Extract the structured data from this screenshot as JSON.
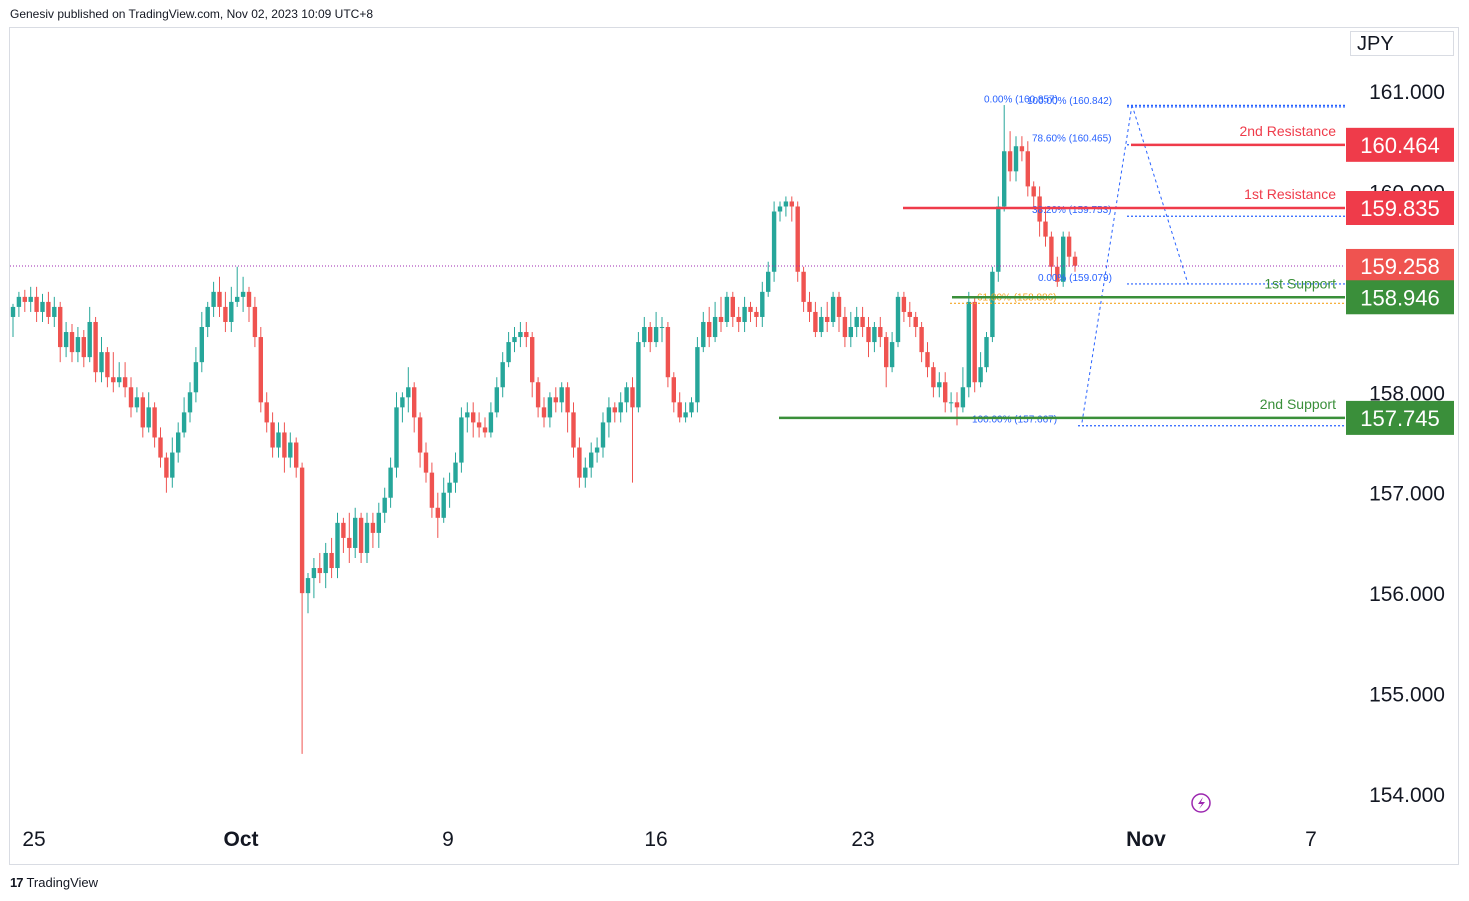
{
  "header": {
    "text": "Genesiv published on TradingView.com, Nov 02, 2023 10:09 UTC+8"
  },
  "currency": "JPY",
  "footer": {
    "logo_icon": "tradingview-logo-icon",
    "brand": "TradingView"
  },
  "colors": {
    "bull": "#26a69a",
    "bear": "#ef5350",
    "resistance": "#ef3b4a",
    "support": "#3a8f3a",
    "fib": "#2962ff",
    "fib_golden": "#f5a623",
    "text": "#131722"
  },
  "chart_data": {
    "type": "candlestick",
    "ylim": [
      153.7,
      161.5
    ],
    "y_ticks": [
      "161.000",
      "160.000",
      "158.000",
      "157.000",
      "156.000",
      "155.000",
      "154.000"
    ],
    "x_ticks": [
      "25",
      "Oct",
      "9",
      "16",
      "23",
      "Nov",
      "7"
    ],
    "current_price": "159.258",
    "levels": [
      {
        "name": "2nd Resistance",
        "value": 160.464,
        "label": "160.464",
        "kind": "resistance"
      },
      {
        "name": "1st Resistance",
        "value": 159.835,
        "label": "159.835",
        "kind": "resistance"
      },
      {
        "name": "1st Support",
        "value": 158.946,
        "label": "158.946",
        "kind": "support"
      },
      {
        "name": "2nd Support",
        "value": 157.745,
        "label": "157.745",
        "kind": "support"
      }
    ],
    "fib_upper": [
      {
        "text": "0.00% (160.857)",
        "value": 160.857
      },
      {
        "text": "100.00% (160.842)",
        "value": 160.842
      },
      {
        "text": "78.60% (160.465)",
        "value": 160.465
      },
      {
        "text": "38.20% (159.753)",
        "value": 159.753
      },
      {
        "text": "61.80% (158.886)",
        "value": 158.886,
        "golden": true
      },
      {
        "text": "0.00% (159.079)",
        "value": 159.079
      }
    ],
    "fib_lower": [
      {
        "text": "100.00% (157.667)",
        "value": 157.667
      }
    ],
    "candles": [
      [
        158.75,
        158.85,
        158.55,
        158.88
      ],
      [
        158.85,
        158.95,
        158.75,
        159.0
      ],
      [
        158.95,
        158.9,
        158.8,
        159.02
      ],
      [
        158.9,
        158.95,
        158.8,
        159.05
      ],
      [
        158.95,
        158.8,
        158.7,
        159.05
      ],
      [
        158.8,
        158.9,
        158.7,
        158.98
      ],
      [
        158.9,
        158.75,
        158.68,
        159.0
      ],
      [
        158.75,
        158.85,
        158.65,
        158.95
      ],
      [
        158.85,
        158.45,
        158.3,
        158.9
      ],
      [
        158.45,
        158.6,
        158.35,
        158.7
      ],
      [
        158.6,
        158.4,
        158.3,
        158.68
      ],
      [
        158.4,
        158.55,
        158.3,
        158.65
      ],
      [
        158.55,
        158.35,
        158.25,
        158.62
      ],
      [
        158.35,
        158.7,
        158.3,
        158.85
      ],
      [
        158.7,
        158.2,
        158.1,
        158.75
      ],
      [
        158.2,
        158.4,
        158.1,
        158.55
      ],
      [
        158.4,
        158.15,
        158.05,
        158.45
      ],
      [
        158.15,
        158.1,
        158.0,
        158.4
      ],
      [
        158.1,
        158.15,
        158.05,
        158.3
      ],
      [
        158.15,
        158.05,
        157.95,
        158.3
      ],
      [
        158.05,
        157.85,
        157.75,
        158.15
      ],
      [
        157.85,
        157.95,
        157.8,
        158.05
      ],
      [
        157.95,
        157.65,
        157.55,
        158.0
      ],
      [
        157.65,
        157.85,
        157.6,
        158.0
      ],
      [
        157.85,
        157.55,
        157.45,
        157.9
      ],
      [
        157.55,
        157.35,
        157.25,
        157.65
      ],
      [
        157.35,
        157.15,
        157.0,
        157.4
      ],
      [
        157.15,
        157.4,
        157.05,
        157.55
      ],
      [
        157.4,
        157.6,
        157.3,
        157.7
      ],
      [
        157.6,
        157.8,
        157.55,
        157.95
      ],
      [
        157.8,
        158.0,
        157.7,
        158.1
      ],
      [
        158.0,
        158.3,
        157.9,
        158.45
      ],
      [
        158.3,
        158.65,
        158.2,
        158.8
      ],
      [
        158.65,
        158.85,
        158.55,
        158.9
      ],
      [
        158.85,
        159.0,
        158.75,
        159.1
      ],
      [
        159.0,
        158.85,
        158.75,
        159.15
      ],
      [
        158.85,
        158.7,
        158.6,
        159.0
      ],
      [
        158.7,
        158.9,
        158.6,
        159.05
      ],
      [
        158.9,
        158.95,
        158.85,
        159.25
      ],
      [
        158.95,
        159.0,
        158.8,
        159.15
      ],
      [
        159.0,
        158.85,
        158.7,
        159.05
      ],
      [
        158.85,
        158.55,
        158.45,
        158.95
      ],
      [
        158.55,
        157.9,
        157.8,
        158.65
      ],
      [
        157.9,
        157.7,
        157.6,
        158.0
      ],
      [
        157.7,
        157.45,
        157.35,
        157.8
      ],
      [
        157.45,
        157.6,
        157.35,
        157.7
      ],
      [
        157.6,
        157.35,
        157.2,
        157.7
      ],
      [
        157.35,
        157.5,
        157.25,
        157.6
      ],
      [
        157.5,
        157.25,
        157.15,
        157.55
      ],
      [
        157.25,
        156.0,
        154.4,
        157.3
      ],
      [
        156.0,
        156.15,
        155.8,
        156.2
      ],
      [
        156.15,
        156.25,
        155.95,
        156.35
      ],
      [
        156.25,
        156.2,
        156.1,
        156.4
      ],
      [
        156.2,
        156.4,
        156.05,
        156.5
      ],
      [
        156.4,
        156.25,
        156.15,
        156.55
      ],
      [
        156.25,
        156.7,
        156.15,
        156.8
      ],
      [
        156.7,
        156.55,
        156.4,
        156.75
      ],
      [
        156.55,
        156.45,
        156.3,
        156.8
      ],
      [
        156.45,
        156.75,
        156.35,
        156.85
      ],
      [
        156.75,
        156.4,
        156.3,
        156.8
      ],
      [
        156.4,
        156.7,
        156.3,
        156.8
      ],
      [
        156.7,
        156.6,
        156.45,
        156.8
      ],
      [
        156.6,
        156.8,
        156.45,
        156.9
      ],
      [
        156.8,
        156.95,
        156.7,
        157.05
      ],
      [
        156.95,
        157.25,
        156.85,
        157.35
      ],
      [
        157.25,
        157.85,
        157.15,
        158.0
      ],
      [
        157.85,
        157.95,
        157.7,
        158.0
      ],
      [
        157.95,
        158.05,
        157.8,
        158.25
      ],
      [
        158.05,
        157.75,
        157.6,
        158.1
      ],
      [
        157.75,
        157.4,
        157.25,
        157.8
      ],
      [
        157.4,
        157.2,
        157.1,
        157.5
      ],
      [
        157.2,
        156.85,
        156.75,
        157.3
      ],
      [
        156.85,
        156.75,
        156.55,
        157.0
      ],
      [
        156.75,
        157.0,
        156.7,
        157.15
      ],
      [
        157.0,
        157.1,
        156.85,
        157.2
      ],
      [
        157.1,
        157.3,
        157.0,
        157.4
      ],
      [
        157.3,
        157.75,
        157.2,
        157.85
      ],
      [
        157.75,
        157.8,
        157.6,
        157.9
      ],
      [
        157.8,
        157.7,
        157.55,
        157.9
      ],
      [
        157.7,
        157.65,
        157.55,
        157.8
      ],
      [
        157.65,
        157.6,
        157.55,
        157.75
      ],
      [
        157.6,
        157.8,
        157.55,
        157.9
      ],
      [
        157.8,
        158.05,
        157.75,
        158.15
      ],
      [
        158.05,
        158.3,
        157.95,
        158.4
      ],
      [
        158.3,
        158.5,
        158.25,
        158.6
      ],
      [
        158.5,
        158.55,
        158.4,
        158.65
      ],
      [
        158.55,
        158.6,
        158.45,
        158.7
      ],
      [
        158.6,
        158.55,
        158.45,
        158.7
      ],
      [
        158.55,
        158.1,
        157.95,
        158.6
      ],
      [
        158.1,
        157.85,
        157.75,
        158.15
      ],
      [
        157.85,
        157.75,
        157.65,
        157.95
      ],
      [
        157.75,
        157.95,
        157.65,
        158.0
      ],
      [
        157.95,
        157.9,
        157.8,
        158.05
      ],
      [
        157.9,
        158.05,
        157.8,
        158.1
      ],
      [
        158.05,
        157.8,
        157.6,
        158.1
      ],
      [
        157.8,
        157.45,
        157.35,
        157.9
      ],
      [
        157.45,
        157.15,
        157.05,
        157.55
      ],
      [
        157.15,
        157.25,
        157.05,
        157.35
      ],
      [
        157.25,
        157.4,
        157.15,
        157.5
      ],
      [
        157.4,
        157.45,
        157.3,
        157.55
      ],
      [
        157.45,
        157.7,
        157.35,
        157.8
      ],
      [
        157.7,
        157.85,
        157.55,
        157.95
      ],
      [
        157.85,
        157.8,
        157.7,
        157.9
      ],
      [
        157.8,
        157.9,
        157.7,
        158.0
      ],
      [
        157.9,
        158.05,
        157.8,
        158.1
      ],
      [
        158.05,
        157.85,
        157.1,
        158.15
      ],
      [
        157.85,
        158.5,
        157.8,
        158.6
      ],
      [
        158.5,
        158.65,
        158.45,
        158.75
      ],
      [
        158.65,
        158.5,
        158.4,
        158.7
      ],
      [
        158.5,
        158.65,
        158.45,
        158.8
      ],
      [
        158.65,
        158.65,
        158.5,
        158.75
      ],
      [
        158.65,
        158.15,
        158.05,
        158.7
      ],
      [
        158.15,
        157.9,
        157.8,
        158.2
      ],
      [
        157.9,
        157.75,
        157.7,
        158.0
      ],
      [
        157.75,
        157.8,
        157.7,
        157.9
      ],
      [
        157.8,
        157.9,
        157.75,
        157.95
      ],
      [
        157.9,
        158.45,
        157.8,
        158.55
      ],
      [
        158.45,
        158.7,
        158.4,
        158.8
      ],
      [
        158.7,
        158.55,
        158.45,
        158.85
      ],
      [
        158.55,
        158.75,
        158.5,
        158.9
      ],
      [
        158.75,
        158.7,
        158.6,
        158.95
      ],
      [
        158.7,
        158.95,
        158.65,
        159.0
      ],
      [
        158.95,
        158.75,
        158.65,
        159.0
      ],
      [
        158.75,
        158.7,
        158.6,
        158.85
      ],
      [
        158.7,
        158.85,
        158.6,
        158.95
      ],
      [
        158.85,
        158.8,
        158.7,
        158.9
      ],
      [
        158.8,
        158.75,
        158.65,
        158.85
      ],
      [
        158.75,
        159.0,
        158.65,
        159.1
      ],
      [
        159.0,
        159.2,
        158.95,
        159.3
      ],
      [
        159.2,
        159.8,
        159.1,
        159.9
      ],
      [
        159.8,
        159.85,
        159.7,
        159.9
      ],
      [
        159.85,
        159.9,
        159.75,
        159.95
      ],
      [
        159.9,
        159.85,
        159.7,
        159.95
      ],
      [
        159.85,
        159.2,
        159.1,
        159.9
      ],
      [
        159.2,
        158.9,
        158.8,
        159.25
      ],
      [
        158.9,
        158.8,
        158.7,
        159.0
      ],
      [
        158.8,
        158.6,
        158.55,
        158.9
      ],
      [
        158.6,
        158.75,
        158.55,
        158.85
      ],
      [
        158.75,
        158.7,
        158.6,
        158.9
      ],
      [
        158.7,
        158.95,
        158.65,
        159.0
      ],
      [
        158.95,
        158.75,
        158.6,
        159.0
      ],
      [
        158.75,
        158.55,
        158.45,
        158.85
      ],
      [
        158.55,
        158.65,
        158.45,
        158.8
      ],
      [
        158.65,
        158.75,
        158.55,
        158.85
      ],
      [
        158.75,
        158.65,
        158.55,
        158.85
      ],
      [
        158.65,
        158.5,
        158.35,
        158.75
      ],
      [
        158.5,
        158.65,
        158.4,
        158.7
      ],
      [
        158.65,
        158.55,
        158.45,
        158.75
      ],
      [
        158.55,
        158.25,
        158.05,
        158.6
      ],
      [
        158.25,
        158.5,
        158.2,
        158.6
      ],
      [
        158.5,
        158.95,
        158.45,
        159.0
      ],
      [
        158.95,
        158.8,
        158.7,
        159.0
      ],
      [
        158.8,
        158.75,
        158.65,
        158.9
      ],
      [
        158.75,
        158.65,
        158.55,
        158.8
      ],
      [
        158.65,
        158.4,
        158.3,
        158.7
      ],
      [
        158.4,
        158.25,
        158.15,
        158.5
      ],
      [
        158.25,
        158.05,
        157.95,
        158.3
      ],
      [
        158.05,
        158.1,
        157.95,
        158.2
      ],
      [
        158.1,
        157.9,
        157.8,
        158.2
      ],
      [
        157.9,
        157.9,
        157.8,
        158.0
      ],
      [
        157.9,
        157.85,
        157.67,
        158.0
      ],
      [
        157.85,
        158.05,
        157.8,
        158.25
      ],
      [
        158.05,
        158.9,
        157.95,
        159.0
      ],
      [
        158.9,
        158.1,
        158.0,
        158.95
      ],
      [
        158.1,
        158.25,
        158.05,
        158.4
      ],
      [
        158.25,
        158.55,
        158.2,
        158.6
      ],
      [
        158.55,
        159.2,
        158.5,
        159.25
      ],
      [
        159.2,
        159.85,
        159.1,
        159.95
      ],
      [
        159.85,
        160.4,
        159.8,
        160.86
      ],
      [
        160.4,
        160.2,
        160.1,
        160.6
      ],
      [
        160.2,
        160.45,
        160.1,
        160.55
      ],
      [
        160.45,
        160.4,
        160.3,
        160.55
      ],
      [
        160.4,
        160.05,
        159.95,
        160.5
      ],
      [
        160.05,
        159.95,
        159.85,
        160.1
      ],
      [
        159.95,
        159.7,
        159.55,
        160.05
      ],
      [
        159.7,
        159.55,
        159.45,
        159.85
      ],
      [
        159.55,
        159.25,
        159.15,
        159.6
      ],
      [
        159.25,
        159.1,
        159.05,
        159.35
      ],
      [
        159.1,
        159.55,
        159.05,
        159.6
      ],
      [
        159.55,
        159.35,
        159.25,
        159.6
      ],
      [
        159.35,
        159.26,
        159.2,
        159.4
      ]
    ]
  }
}
